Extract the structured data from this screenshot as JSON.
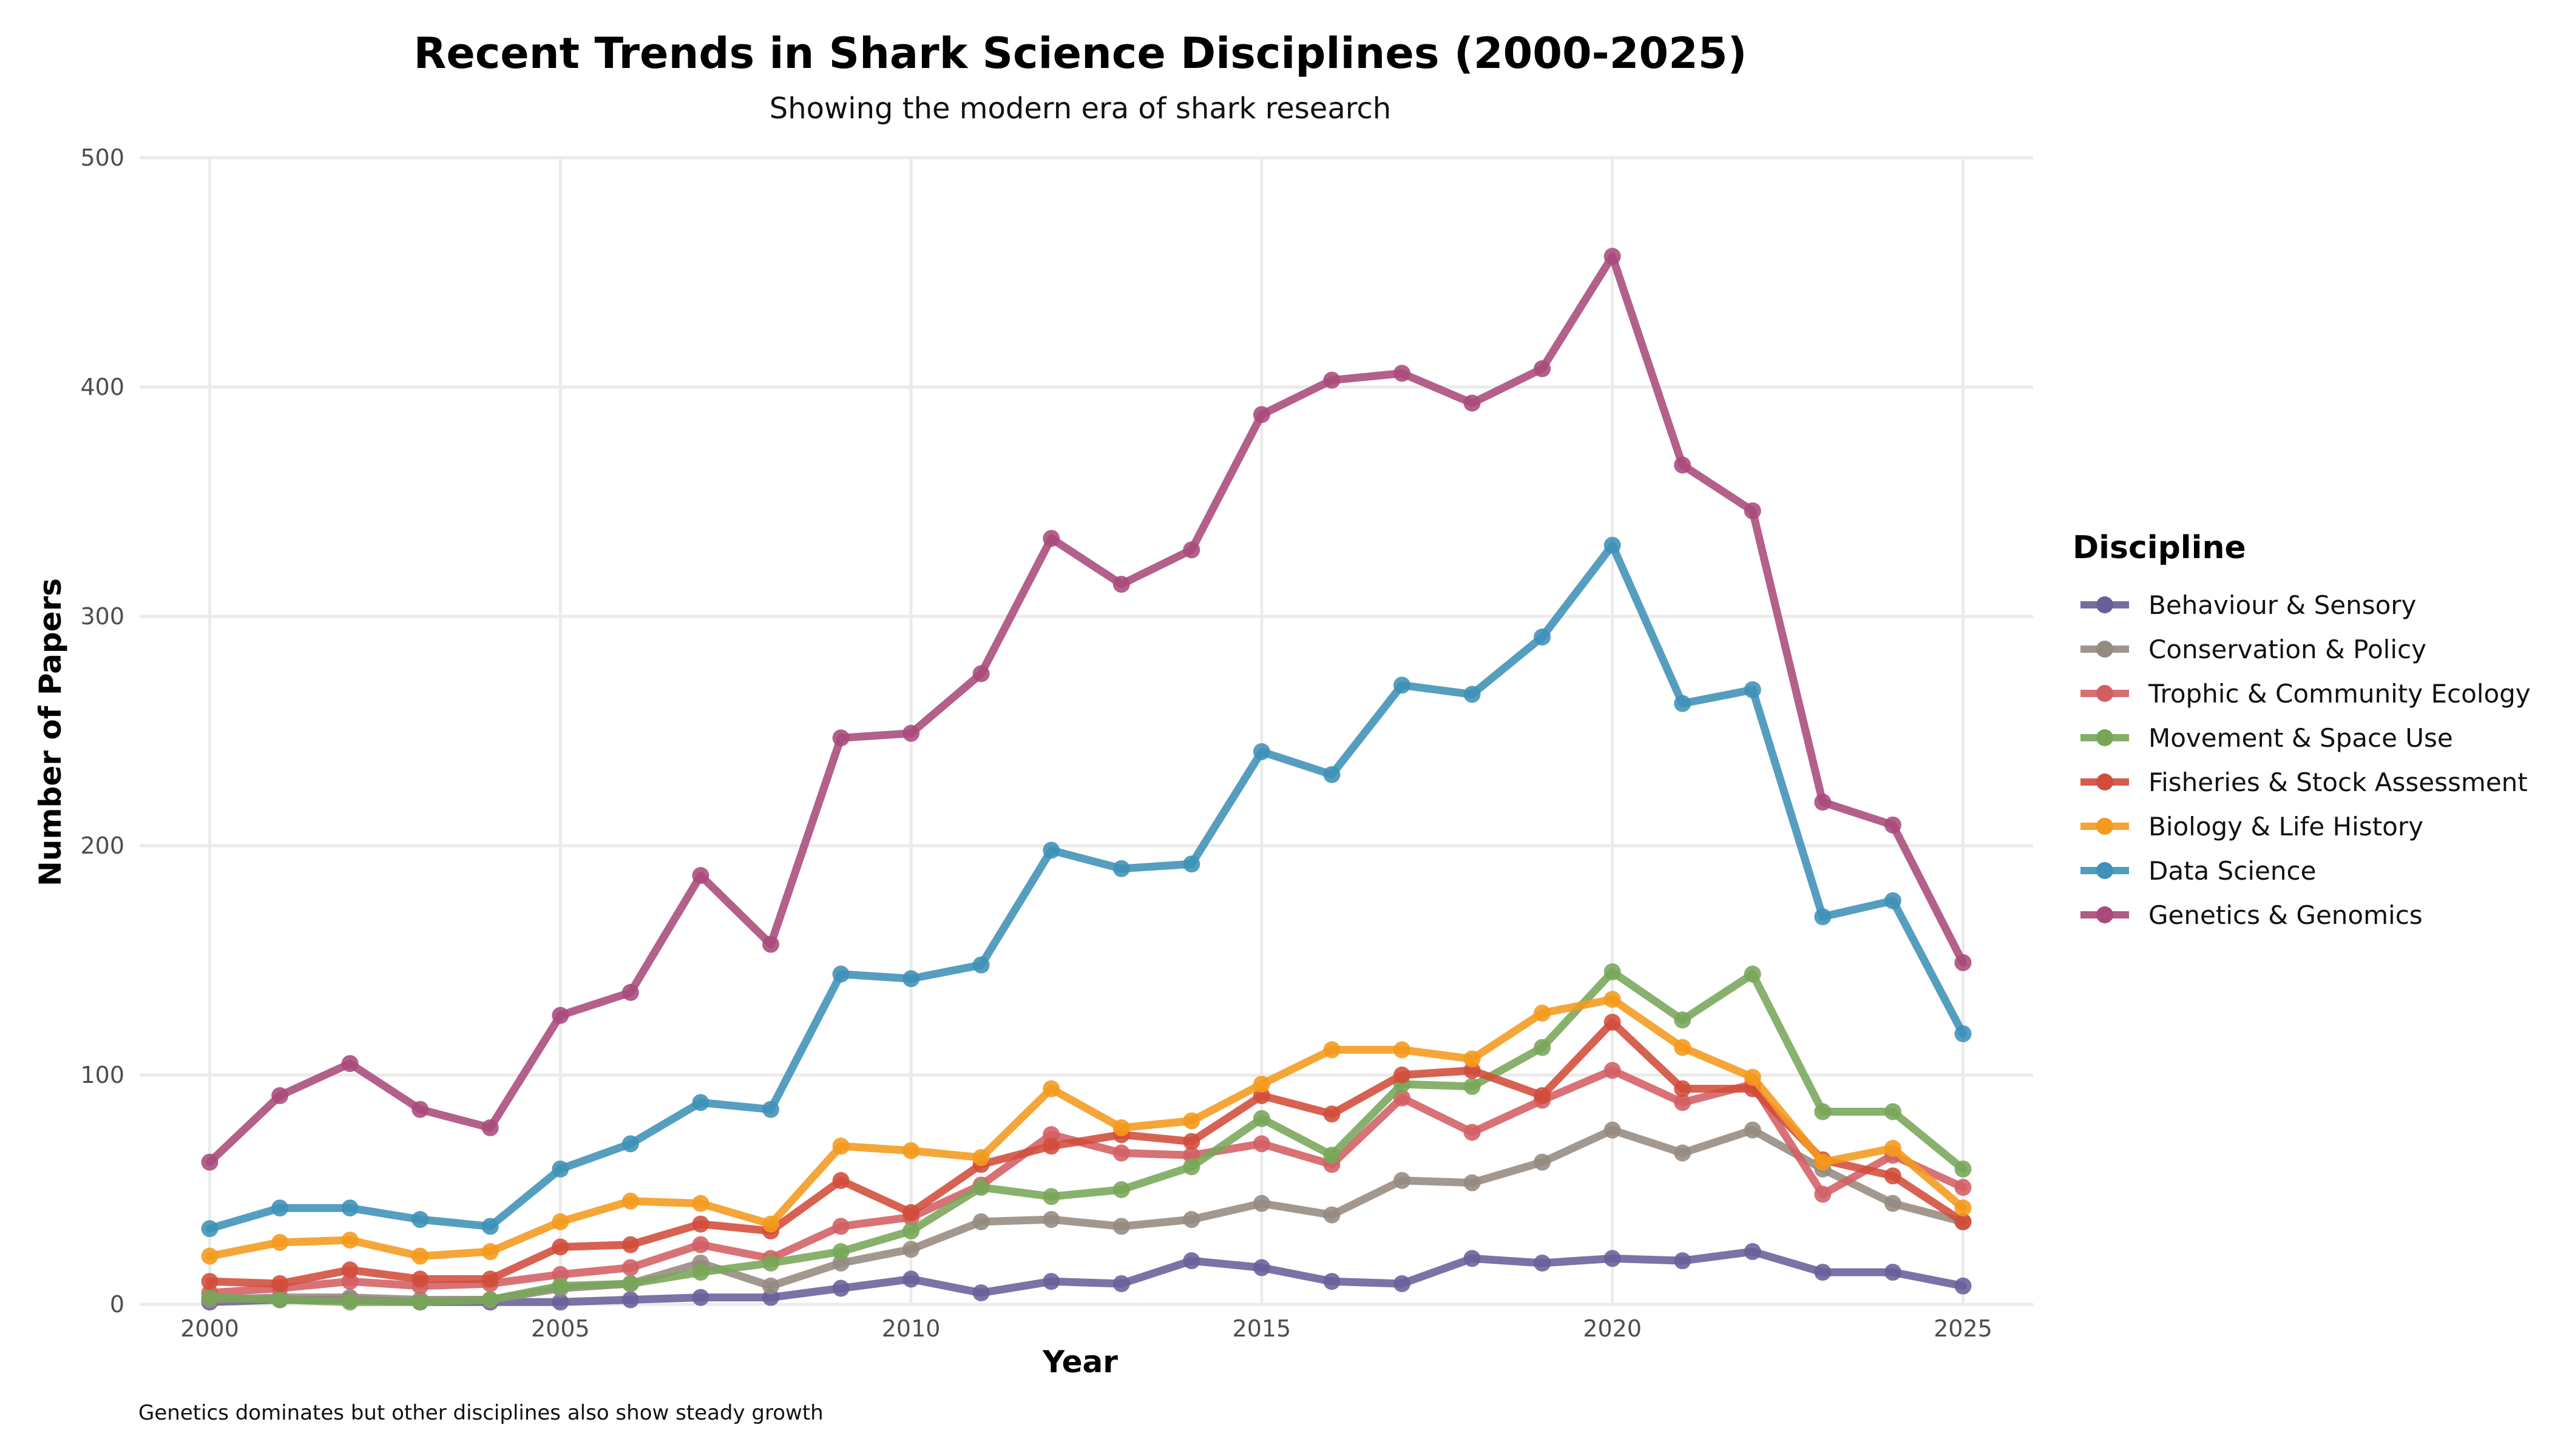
{
  "chart_data": {
    "type": "line",
    "title": "Recent Trends in Shark Science Disciplines (2000-2025)",
    "subtitle": "Showing the modern era of shark research",
    "xlabel": "Year",
    "ylabel": "Number of Papers",
    "caption": "Genetics dominates but other disciplines also show steady growth",
    "xlim": [
      1999,
      2026
    ],
    "ylim": [
      0,
      500
    ],
    "x_ticks": [
      2000,
      2005,
      2010,
      2015,
      2020,
      2025
    ],
    "y_ticks": [
      0,
      100,
      200,
      300,
      400,
      500
    ],
    "grid": true,
    "legend": {
      "title": "Discipline",
      "position": "right"
    },
    "x": [
      2000,
      2001,
      2002,
      2003,
      2004,
      2005,
      2006,
      2007,
      2008,
      2009,
      2010,
      2011,
      2012,
      2013,
      2014,
      2015,
      2016,
      2017,
      2018,
      2019,
      2020,
      2021,
      2022,
      2023,
      2024,
      2025
    ],
    "series": [
      {
        "name": "Behaviour & Sensory",
        "color": "#6a5e9a",
        "values": [
          1,
          2,
          2,
          1,
          1,
          1,
          2,
          3,
          3,
          7,
          11,
          5,
          10,
          9,
          19,
          16,
          10,
          9,
          20,
          18,
          20,
          19,
          23,
          14,
          14,
          8
        ]
      },
      {
        "name": "Conservation & Policy",
        "color": "#958a80",
        "values": [
          2,
          3,
          3,
          2,
          2,
          7,
          9,
          18,
          8,
          18,
          24,
          36,
          37,
          34,
          37,
          44,
          39,
          54,
          53,
          62,
          76,
          66,
          76,
          59,
          44,
          36
        ]
      },
      {
        "name": "Trophic & Community Ecology",
        "color": "#d35f64",
        "values": [
          5,
          7,
          10,
          8,
          9,
          13,
          16,
          26,
          20,
          34,
          38,
          52,
          74,
          66,
          65,
          70,
          61,
          90,
          75,
          89,
          102,
          88,
          96,
          48,
          65,
          51
        ]
      },
      {
        "name": "Movement & Space Use",
        "color": "#78a659",
        "values": [
          3,
          2,
          1,
          1,
          2,
          8,
          9,
          14,
          18,
          23,
          32,
          51,
          47,
          50,
          60,
          81,
          65,
          96,
          95,
          112,
          145,
          124,
          144,
          84,
          84,
          59
        ]
      },
      {
        "name": "Fisheries & Stock Assessment",
        "color": "#d14c3a",
        "values": [
          10,
          9,
          15,
          11,
          11,
          25,
          26,
          35,
          32,
          54,
          40,
          61,
          69,
          74,
          71,
          91,
          83,
          100,
          102,
          91,
          123,
          94,
          94,
          63,
          56,
          36
        ]
      },
      {
        "name": "Biology & Life History",
        "color": "#f49a1c",
        "values": [
          21,
          27,
          28,
          21,
          23,
          36,
          45,
          44,
          35,
          69,
          67,
          64,
          94,
          77,
          80,
          96,
          111,
          111,
          107,
          127,
          133,
          112,
          99,
          62,
          68,
          42
        ]
      },
      {
        "name": "Data Science",
        "color": "#3e91b7",
        "values": [
          33,
          42,
          42,
          37,
          34,
          59,
          70,
          88,
          85,
          144,
          142,
          148,
          198,
          190,
          192,
          241,
          231,
          270,
          266,
          291,
          331,
          262,
          268,
          169,
          176,
          118
        ]
      },
      {
        "name": "Genetics & Genomics",
        "color": "#a94a7b",
        "values": [
          62,
          91,
          105,
          85,
          77,
          126,
          136,
          187,
          157,
          247,
          249,
          275,
          334,
          314,
          329,
          388,
          403,
          406,
          393,
          408,
          457,
          366,
          346,
          219,
          209,
          149
        ]
      }
    ]
  }
}
